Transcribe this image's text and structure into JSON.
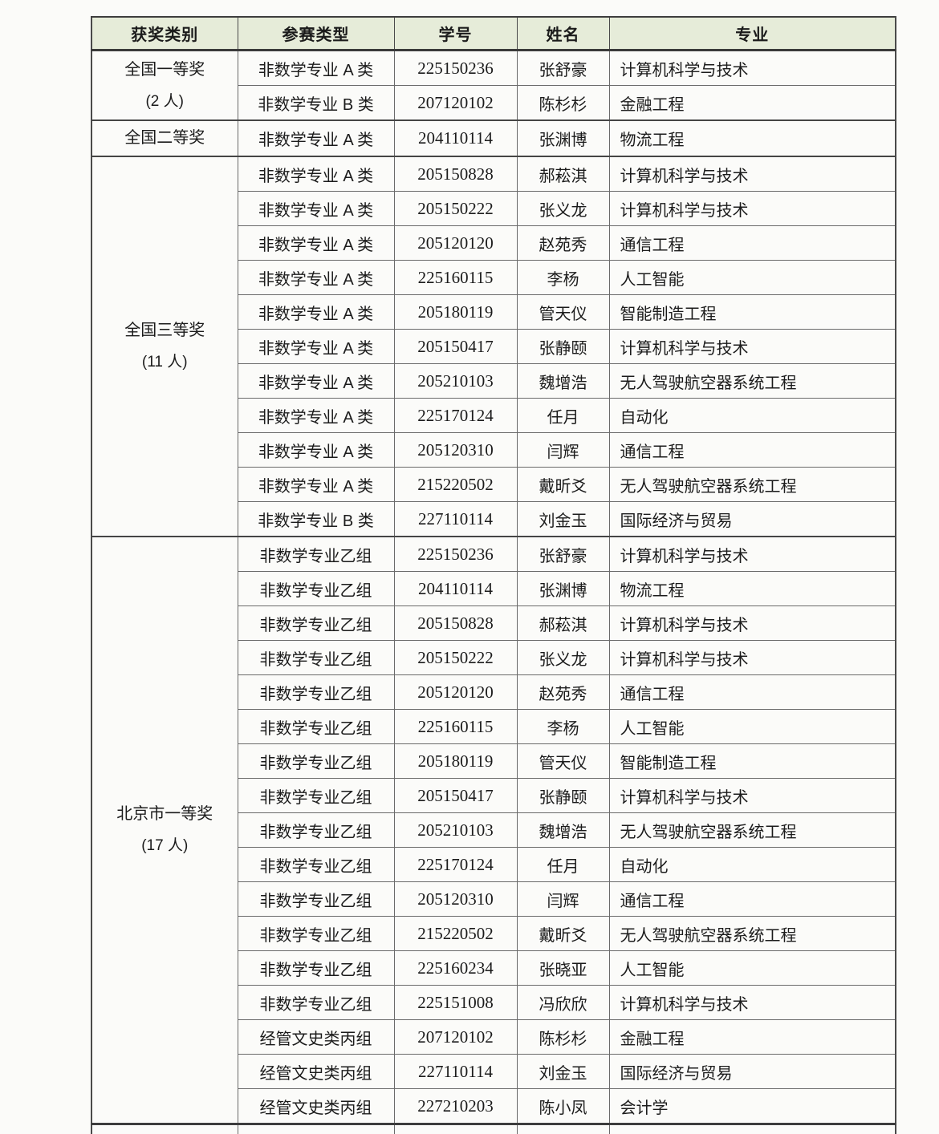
{
  "colors": {
    "header_bg": "#e6ecd9",
    "grid_line": "#6a6a6a",
    "section_line": "#454545",
    "text": "#1b1b1b",
    "page_bg": "#fbfbf9"
  },
  "table": {
    "headers": [
      "获奖类别",
      "参赛类型",
      "学号",
      "姓名",
      "专业"
    ],
    "sections": [
      {
        "category": "全国一等奖",
        "count": "(2 人)",
        "rows": [
          [
            "非数学专业 A 类",
            "225150236",
            "张舒豪",
            "计算机科学与技术"
          ],
          [
            "非数学专业 B 类",
            "207120102",
            "陈杉杉",
            "金融工程"
          ]
        ]
      },
      {
        "category": "全国二等奖",
        "count": "",
        "rows": [
          [
            "非数学专业 A 类",
            "204110114",
            "张渊博",
            "物流工程"
          ]
        ]
      },
      {
        "category": "全国三等奖",
        "count": "(11 人)",
        "rows": [
          [
            "非数学专业 A 类",
            "205150828",
            "郝菘淇",
            "计算机科学与技术"
          ],
          [
            "非数学专业 A 类",
            "205150222",
            "张义龙",
            "计算机科学与技术"
          ],
          [
            "非数学专业 A 类",
            "205120120",
            "赵苑秀",
            "通信工程"
          ],
          [
            "非数学专业 A 类",
            "225160115",
            "李杨",
            "人工智能"
          ],
          [
            "非数学专业 A 类",
            "205180119",
            "管天仪",
            "智能制造工程"
          ],
          [
            "非数学专业 A 类",
            "205150417",
            "张静颐",
            "计算机科学与技术"
          ],
          [
            "非数学专业 A 类",
            "205210103",
            "魏增浩",
            "无人驾驶航空器系统工程"
          ],
          [
            "非数学专业 A 类",
            "225170124",
            "任月",
            "自动化"
          ],
          [
            "非数学专业 A 类",
            "205120310",
            "闫辉",
            "通信工程"
          ],
          [
            "非数学专业 A 类",
            "215220502",
            "戴昕爻",
            "无人驾驶航空器系统工程"
          ],
          [
            "非数学专业 B 类",
            "227110114",
            "刘金玉",
            "国际经济与贸易"
          ]
        ]
      },
      {
        "category": "北京市一等奖",
        "count": "(17 人)",
        "rows": [
          [
            "非数学专业乙组",
            "225150236",
            "张舒豪",
            "计算机科学与技术"
          ],
          [
            "非数学专业乙组",
            "204110114",
            "张渊博",
            "物流工程"
          ],
          [
            "非数学专业乙组",
            "205150828",
            "郝菘淇",
            "计算机科学与技术"
          ],
          [
            "非数学专业乙组",
            "205150222",
            "张义龙",
            "计算机科学与技术"
          ],
          [
            "非数学专业乙组",
            "205120120",
            "赵苑秀",
            "通信工程"
          ],
          [
            "非数学专业乙组",
            "225160115",
            "李杨",
            "人工智能"
          ],
          [
            "非数学专业乙组",
            "205180119",
            "管天仪",
            "智能制造工程"
          ],
          [
            "非数学专业乙组",
            "205150417",
            "张静颐",
            "计算机科学与技术"
          ],
          [
            "非数学专业乙组",
            "205210103",
            "魏增浩",
            "无人驾驶航空器系统工程"
          ],
          [
            "非数学专业乙组",
            "225170124",
            "任月",
            "自动化"
          ],
          [
            "非数学专业乙组",
            "205120310",
            "闫辉",
            "通信工程"
          ],
          [
            "非数学专业乙组",
            "215220502",
            "戴昕爻",
            "无人驾驶航空器系统工程"
          ],
          [
            "非数学专业乙组",
            "225160234",
            "张晓亚",
            "人工智能"
          ],
          [
            "非数学专业乙组",
            "225151008",
            "冯欣欣",
            "计算机科学与技术"
          ],
          [
            "经管文史类丙组",
            "207120102",
            "陈杉杉",
            "金融工程"
          ],
          [
            "经管文史类丙组",
            "227110114",
            "刘金玉",
            "国际经济与贸易"
          ],
          [
            "经管文史类丙组",
            "227210203",
            "陈小凤",
            "会计学"
          ]
        ]
      }
    ],
    "partial_next_section": true
  }
}
